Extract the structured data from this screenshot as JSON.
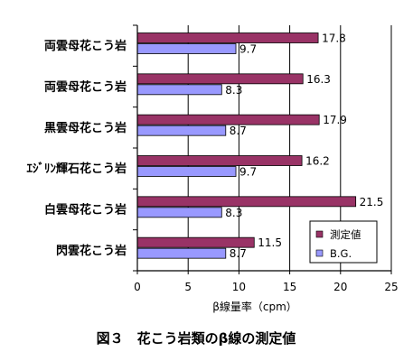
{
  "chart_data": {
    "type": "bar",
    "orientation": "horizontal",
    "categories": [
      "両雲母花こう岩",
      "両雲母花こう岩",
      "黒雲母花こう岩",
      "ｴｼﾞﾘﾝ輝石花こう岩",
      "白雲母花こう岩",
      "閃雲花こう岩"
    ],
    "series": [
      {
        "name": "測定値",
        "color": "#993366",
        "values": [
          17.8,
          16.3,
          17.9,
          16.2,
          21.5,
          11.5
        ],
        "labels": [
          "17.8",
          "16.3",
          "17.9",
          "16.2",
          "21.5",
          "11.5"
        ]
      },
      {
        "name": "B.G.",
        "color": "#9999ff",
        "values": [
          9.7,
          8.3,
          8.7,
          9.7,
          8.3,
          8.7
        ],
        "labels": [
          "9.7",
          "8.3",
          "8.7",
          "9.7",
          "8.3",
          "8.7"
        ]
      }
    ],
    "xlabel": "β線量率（cpm）",
    "xlim": [
      0,
      25
    ],
    "xticks": [
      0,
      5,
      10,
      15,
      20,
      25
    ],
    "xtick_labels": [
      "0",
      "5",
      "10",
      "15",
      "20",
      "25"
    ],
    "grid": true,
    "legend": "bottom-right"
  },
  "caption": "図３　花こう岩類のβ線の測定値"
}
